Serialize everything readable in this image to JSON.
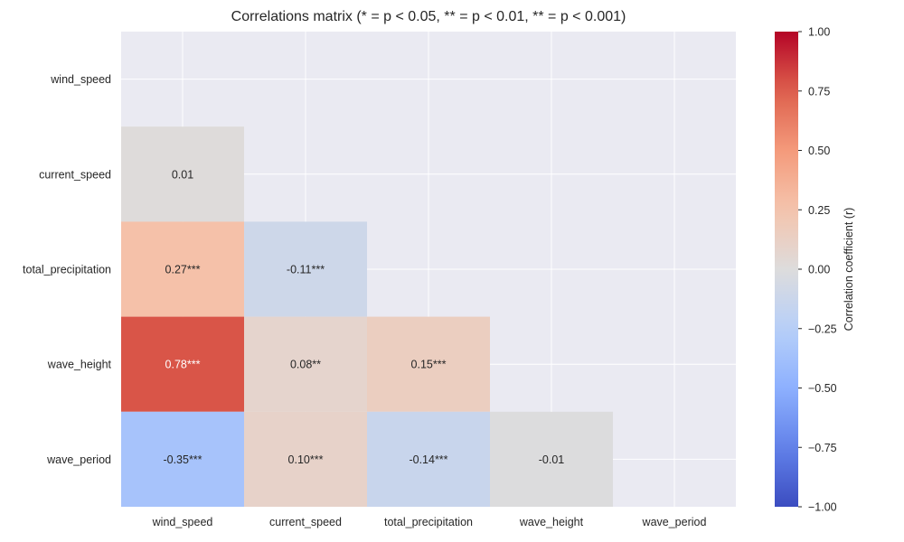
{
  "chart_data": {
    "type": "heatmap",
    "title": "Correlations matrix (* = p < 0.05, ** = p < 0.01, ** = p < 0.001)",
    "variables": [
      "wind_speed",
      "current_speed",
      "total_precipitation",
      "wave_height",
      "wave_period"
    ],
    "mask": "upper-triangle-including-diagonal",
    "cells": [
      {
        "row": "current_speed",
        "col": "wind_speed",
        "value": 0.01,
        "label": "0.01"
      },
      {
        "row": "total_precipitation",
        "col": "wind_speed",
        "value": 0.27,
        "label": "0.27***"
      },
      {
        "row": "total_precipitation",
        "col": "current_speed",
        "value": -0.11,
        "label": "-0.11***"
      },
      {
        "row": "wave_height",
        "col": "wind_speed",
        "value": 0.78,
        "label": "0.78***"
      },
      {
        "row": "wave_height",
        "col": "current_speed",
        "value": 0.08,
        "label": "0.08**"
      },
      {
        "row": "wave_height",
        "col": "total_precipitation",
        "value": 0.15,
        "label": "0.15***"
      },
      {
        "row": "wave_period",
        "col": "wind_speed",
        "value": -0.35,
        "label": "-0.35***"
      },
      {
        "row": "wave_period",
        "col": "current_speed",
        "value": 0.1,
        "label": "0.10***"
      },
      {
        "row": "wave_period",
        "col": "total_precipitation",
        "value": -0.14,
        "label": "-0.14***"
      },
      {
        "row": "wave_period",
        "col": "wave_height",
        "value": -0.01,
        "label": "-0.01"
      }
    ],
    "colorbar": {
      "label": "Correlation coefficient (r)",
      "colormap": "coolwarm",
      "range": [
        -1,
        1
      ],
      "ticks": [
        1.0,
        0.75,
        0.5,
        0.25,
        0.0,
        -0.25,
        -0.5,
        -0.75,
        -1.0
      ],
      "tick_labels": [
        "1.00",
        "0.75",
        "0.50",
        "0.25",
        "0.00",
        "−0.25",
        "−0.50",
        "−0.75",
        "−1.00"
      ]
    },
    "grid": true,
    "style": {
      "axes_background": "#eaeaf2",
      "grid_color": "#ffffff",
      "text_color": "#262626",
      "light_text_color": "#ffffff"
    }
  }
}
